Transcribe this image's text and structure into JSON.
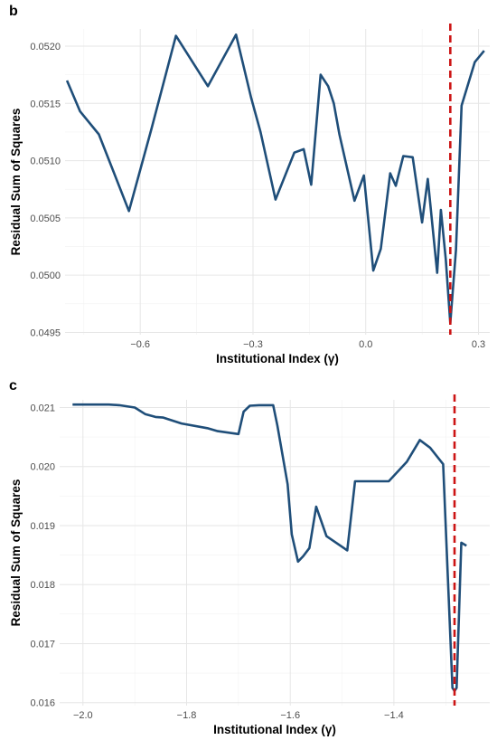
{
  "chart_data": [
    {
      "type": "line",
      "panel_label": "b",
      "xlabel": "Institutional Index (γ)",
      "ylabel": "Residual Sum of Squares",
      "xlim": [
        -0.8,
        0.33
      ],
      "ylim": [
        0.04948,
        0.05215
      ],
      "x_ticks": [
        -0.6,
        -0.3,
        0.0,
        0.3
      ],
      "x_tick_labels": [
        "−0.6",
        "−0.3",
        "0.0",
        "0.3"
      ],
      "y_ticks": [
        0.0495,
        0.05,
        0.0505,
        0.051,
        0.0515,
        0.052
      ],
      "y_tick_labels": [
        "0.0495",
        "0.0500",
        "0.0505",
        "0.0510",
        "0.0515",
        "0.0520"
      ],
      "vline_x": 0.225,
      "line_color": "#1f4e79",
      "vline_color": "#cc1414",
      "grid": true,
      "x": [
        -0.795,
        -0.76,
        -0.71,
        -0.63,
        -0.57,
        -0.505,
        -0.42,
        -0.345,
        -0.305,
        -0.28,
        -0.24,
        -0.19,
        -0.165,
        -0.145,
        -0.12,
        -0.1,
        -0.085,
        -0.07,
        -0.03,
        -0.005,
        0.02,
        0.04,
        0.065,
        0.08,
        0.1,
        0.125,
        0.15,
        0.165,
        0.19,
        0.2,
        0.213,
        0.225,
        0.24,
        0.255,
        0.29,
        0.315
      ],
      "y": [
        0.0517,
        0.05143,
        0.05123,
        0.05056,
        0.05128,
        0.05209,
        0.05165,
        0.0521,
        0.05155,
        0.05125,
        0.05066,
        0.05107,
        0.0511,
        0.05079,
        0.05175,
        0.05165,
        0.0515,
        0.05123,
        0.05065,
        0.05087,
        0.05004,
        0.05023,
        0.05089,
        0.05078,
        0.05104,
        0.05103,
        0.05046,
        0.05084,
        0.05002,
        0.05057,
        0.05014,
        0.04958,
        0.05022,
        0.05148,
        0.05186,
        0.05196
      ]
    },
    {
      "type": "line",
      "panel_label": "c",
      "xlabel": "Institutional Index (γ)",
      "ylabel": "Residual Sum of Squares",
      "xlim": [
        -2.045,
        -1.215
      ],
      "ylim": [
        0.01595,
        0.02113
      ],
      "x_ticks": [
        -2.0,
        -1.8,
        -1.6,
        -1.4
      ],
      "x_tick_labels": [
        "−2.0",
        "−1.8",
        "−1.6",
        "−1.4"
      ],
      "y_ticks": [
        0.016,
        0.017,
        0.018,
        0.019,
        0.02,
        0.021
      ],
      "y_tick_labels": [
        "0.016",
        "0.017",
        "0.018",
        "0.019",
        "0.020",
        "0.021"
      ],
      "vline_x": -1.283,
      "line_color": "#1f4e79",
      "vline_color": "#cc1414",
      "grid": true,
      "x": [
        -2.02,
        -1.95,
        -1.93,
        -1.9,
        -1.88,
        -1.86,
        -1.845,
        -1.81,
        -1.76,
        -1.74,
        -1.7,
        -1.69,
        -1.678,
        -1.66,
        -1.645,
        -1.633,
        -1.625,
        -1.605,
        -1.597,
        -1.585,
        -1.575,
        -1.563,
        -1.55,
        -1.53,
        -1.49,
        -1.475,
        -1.45,
        -1.41,
        -1.375,
        -1.35,
        -1.33,
        -1.305,
        -1.287,
        -1.283,
        -1.279,
        -1.27,
        -1.26
      ],
      "y": [
        0.02105,
        0.02105,
        0.02104,
        0.021,
        0.02089,
        0.02084,
        0.02083,
        0.02073,
        0.02065,
        0.0206,
        0.02055,
        0.02093,
        0.02103,
        0.02104,
        0.02104,
        0.02104,
        0.0207,
        0.0197,
        0.01885,
        0.01839,
        0.01848,
        0.01862,
        0.01932,
        0.01882,
        0.01858,
        0.01975,
        0.01975,
        0.01975,
        0.02008,
        0.02045,
        0.02032,
        0.02004,
        0.01625,
        0.0162,
        0.01625,
        0.01871,
        0.01866
      ]
    }
  ]
}
